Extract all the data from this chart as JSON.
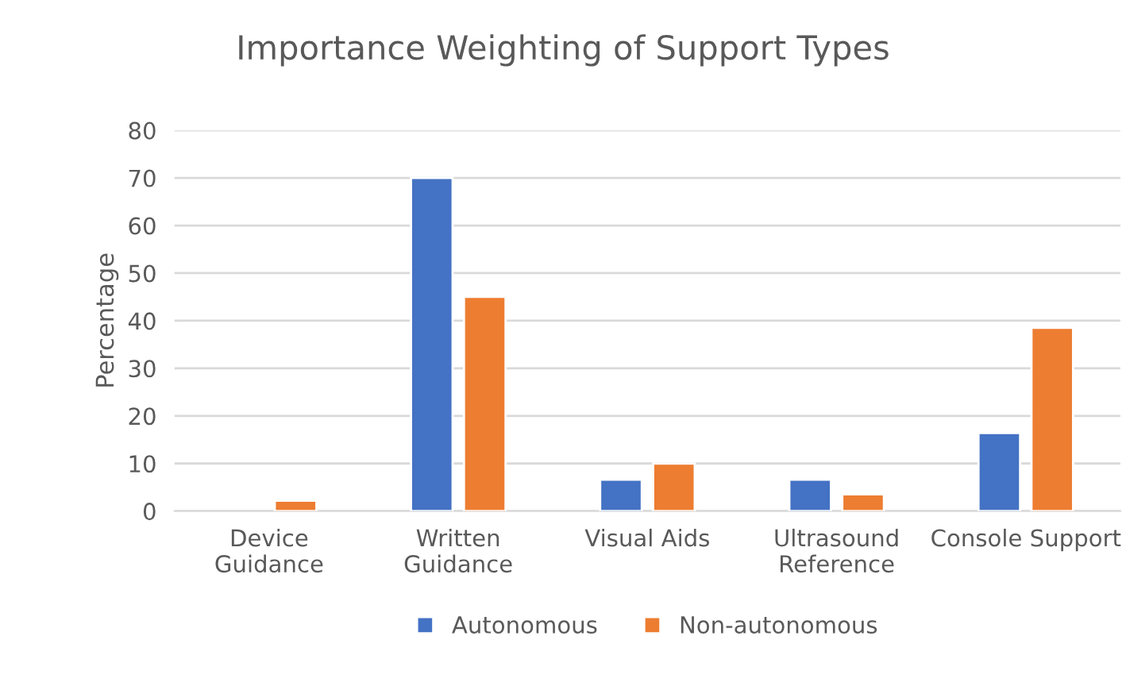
{
  "chart_data": {
    "type": "bar",
    "title": "Importance Weighting of Support Types",
    "ylabel": "Percentage",
    "categories": [
      "Device\nGuidance",
      "Written\nGuidance",
      "Visual Aids",
      "Ultrasound\nReference",
      "Console Support"
    ],
    "series": [
      {
        "name": "Autonomous",
        "color": "#4472c4",
        "values": [
          null,
          70,
          6.6,
          6.6,
          16.4
        ]
      },
      {
        "name": "Non-autonomous",
        "color": "#ed7d31",
        "values": [
          2.2,
          45,
          10,
          3.5,
          38.5
        ]
      }
    ],
    "ylim": [
      0,
      80
    ],
    "yticks": [
      0,
      10,
      20,
      30,
      40,
      50,
      60,
      70,
      80
    ],
    "grid": "y",
    "legend": "bottom"
  }
}
